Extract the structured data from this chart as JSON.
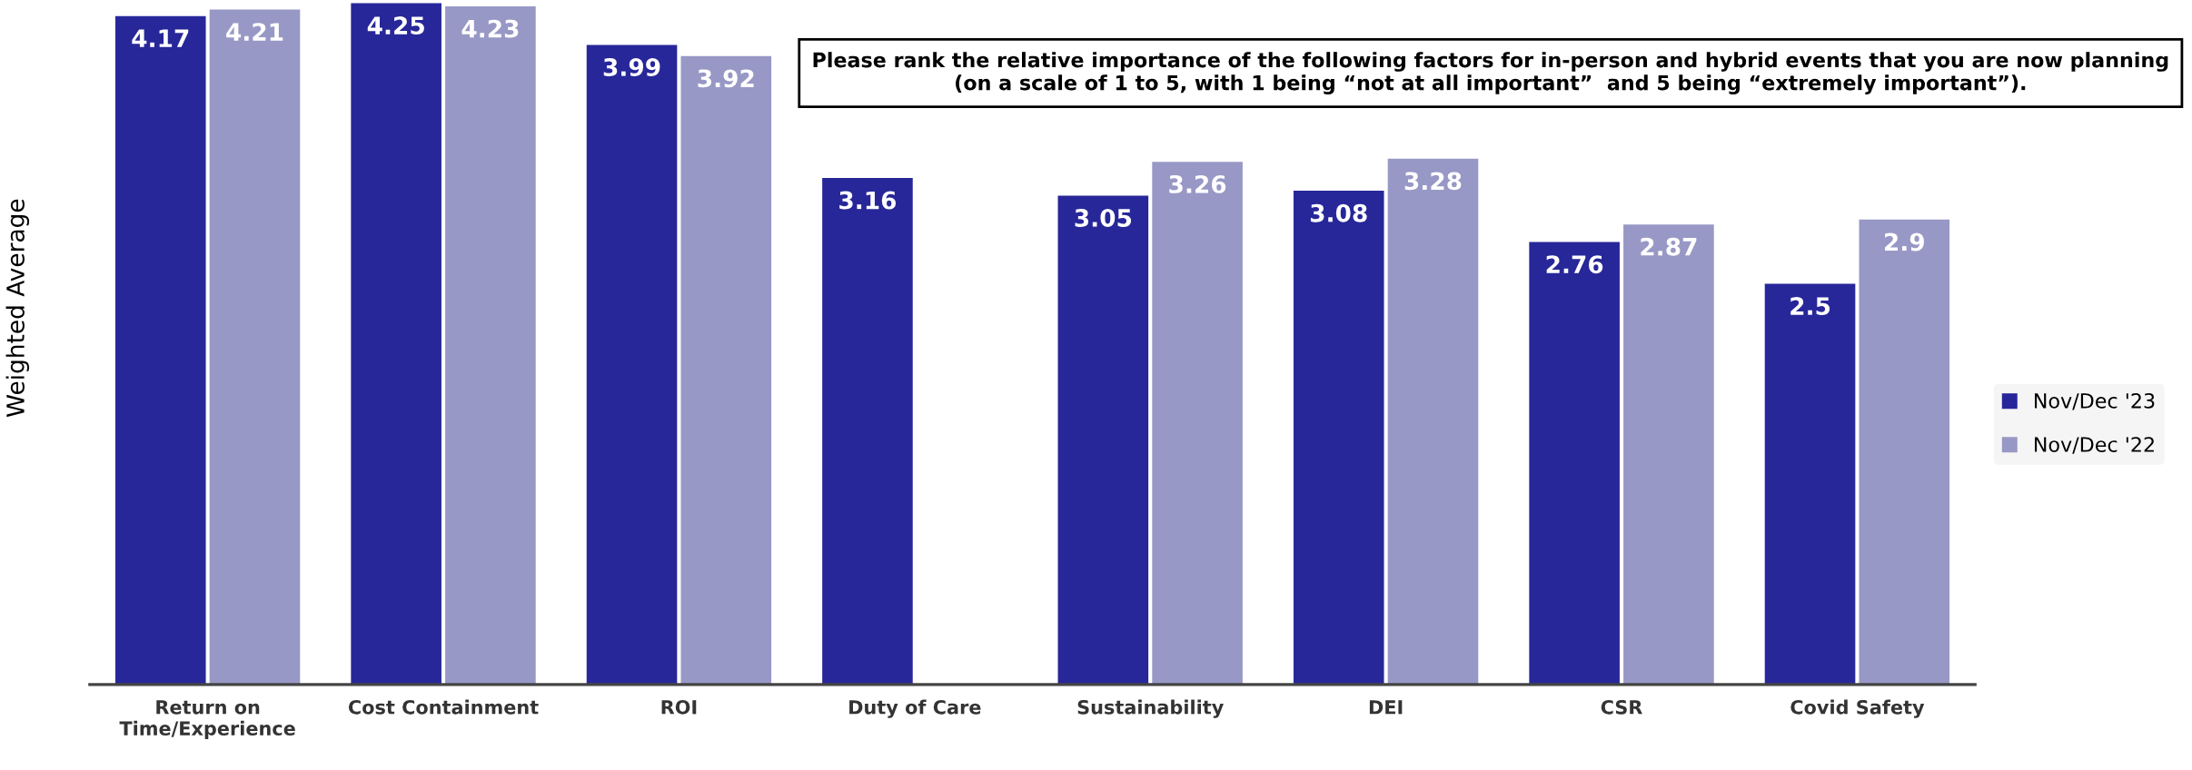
{
  "chart_data": {
    "type": "bar",
    "title": "Please rank the relative importance of the following factors for in-person and hybrid events that you are now planning (on a scale of 1 to 5, with 1 being “not at all important”  and 5 being “extremely important”).",
    "ylabel": "Weighted Average",
    "categories": [
      "Return on\nTime/Experience",
      "Cost Containment",
      "ROI",
      "Duty of Care",
      "Sustainability",
      "DEI",
      "CSR",
      "Covid Safety"
    ],
    "series": [
      {
        "name": "Nov/Dec '23",
        "color": "#27279a",
        "values": [
          4.17,
          4.25,
          3.99,
          3.16,
          3.05,
          3.08,
          2.76,
          2.5
        ]
      },
      {
        "name": "Nov/Dec '22",
        "color": "#9898c6",
        "values": [
          4.21,
          4.23,
          3.92,
          null,
          3.26,
          3.28,
          2.87,
          2.9
        ]
      }
    ],
    "ylim": [
      0,
      4.27
    ],
    "data_labels": true,
    "legend": "right",
    "grid": false
  }
}
